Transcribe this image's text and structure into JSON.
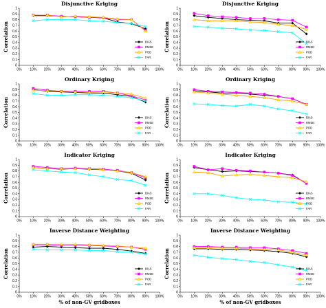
{
  "figure": {
    "xlabel": "% of non-GV gridboxes",
    "ylabel": "Correlation",
    "colors": {
      "BIAS": "#000000",
      "RMSE": "#ff00ff",
      "POD": "#ffff00",
      "FAR": "#00ffff",
      "orange_line": "#ff9900"
    }
  },
  "chart_data": [
    {
      "type": "line",
      "title": "Disjunctive Kriging",
      "x": [
        "0%",
        "10%",
        "20%",
        "30%",
        "40%",
        "50%",
        "60%",
        "70%",
        "80%",
        "90%",
        "100%"
      ],
      "ylim": [
        0,
        1
      ],
      "yticks": [
        "0",
        "0.1",
        "0.2",
        "0.3",
        "0.4",
        "0.5",
        "0.6",
        "0.7",
        "0.8",
        "0.9",
        "1"
      ],
      "series": [
        {
          "name": "BIAS",
          "values": [
            null,
            0.87,
            0.87,
            0.86,
            0.85,
            0.84,
            0.83,
            0.76,
            0.73,
            0.64,
            null
          ]
        },
        {
          "name": "RMSE",
          "values": [
            null,
            0.88,
            0.88,
            0.86,
            0.85,
            0.84,
            0.83,
            0.8,
            0.8,
            0.61,
            null
          ]
        },
        {
          "name": "POD",
          "values": [
            null,
            0.88,
            0.88,
            0.85,
            0.86,
            0.85,
            0.84,
            0.81,
            0.8,
            0.6,
            null
          ]
        },
        {
          "name": "FAR",
          "values": [
            null,
            0.78,
            0.8,
            0.8,
            0.8,
            0.78,
            0.77,
            0.75,
            0.73,
            0.68,
            null
          ]
        }
      ]
    },
    {
      "type": "line",
      "title": "Disjunctive Kriging",
      "x": [
        "0%",
        "10%",
        "20%",
        "30%",
        "40%",
        "50%",
        "60%",
        "70%",
        "80%",
        "90%",
        "100%"
      ],
      "ylim": [
        0,
        1
      ],
      "yticks": [
        "0",
        "0.1",
        "0.2",
        "0.3",
        "0.4",
        "0.5",
        "0.6",
        "0.7",
        "0.8",
        "0.9",
        "1"
      ],
      "series": [
        {
          "name": "BIAS",
          "values": [
            null,
            0.87,
            0.84,
            0.82,
            0.8,
            0.79,
            0.78,
            0.74,
            0.74,
            0.55,
            null
          ]
        },
        {
          "name": "RMSE",
          "values": [
            null,
            0.91,
            0.87,
            0.85,
            0.84,
            0.82,
            0.82,
            0.8,
            0.79,
            0.67,
            null
          ]
        },
        {
          "name": "POD",
          "values": [
            null,
            0.8,
            0.78,
            0.78,
            0.78,
            0.76,
            0.75,
            0.72,
            0.7,
            0.63,
            null
          ]
        },
        {
          "name": "FAR",
          "values": [
            null,
            0.68,
            0.67,
            0.65,
            0.64,
            0.62,
            0.61,
            0.59,
            0.57,
            0.38,
            null
          ]
        }
      ]
    },
    {
      "type": "line",
      "title": "Ordinary Kriging",
      "x": [
        "0%",
        "10%",
        "20%",
        "30%",
        "40%",
        "50%",
        "60%",
        "70%",
        "80%",
        "90%",
        "100%"
      ],
      "ylim": [
        0,
        1
      ],
      "yticks": [
        "0",
        "0.1",
        "0.2",
        "0.3",
        "0.4",
        "0.5",
        "0.6",
        "0.7",
        "0.8",
        "0.9",
        "1"
      ],
      "series": [
        {
          "name": "BIAS",
          "values": [
            null,
            0.9,
            0.87,
            0.86,
            0.85,
            0.84,
            0.84,
            0.81,
            0.78,
            0.68,
            null
          ]
        },
        {
          "name": "RMSE",
          "values": [
            null,
            0.92,
            0.89,
            0.87,
            0.87,
            0.87,
            0.87,
            0.84,
            0.79,
            0.72,
            null
          ]
        },
        {
          "name": "POD",
          "values": [
            null,
            0.89,
            0.88,
            0.87,
            0.86,
            0.85,
            0.86,
            0.84,
            0.82,
            0.75,
            null
          ]
        },
        {
          "name": "FAR",
          "values": [
            null,
            0.83,
            0.8,
            0.8,
            0.81,
            0.81,
            0.8,
            0.78,
            0.76,
            0.7,
            null
          ]
        }
      ]
    },
    {
      "type": "line",
      "title": "Ordinary Kriging",
      "x": [
        "0%",
        "10%",
        "20%",
        "30%",
        "40%",
        "50%",
        "60%",
        "70%",
        "80%",
        "90%",
        "100%"
      ],
      "ylim": [
        0,
        1
      ],
      "yticks": [
        "0",
        "0.1",
        "0.2",
        "0.3",
        "0.4",
        "0.5",
        "0.6",
        "0.7",
        "0.8",
        "0.9",
        "1"
      ],
      "series": [
        {
          "name": "BIAS",
          "values": [
            null,
            0.88,
            0.86,
            0.84,
            0.84,
            0.82,
            0.8,
            0.78,
            0.74,
            0.64,
            null
          ]
        },
        {
          "name": "RMSE",
          "values": [
            null,
            0.9,
            0.87,
            0.86,
            0.85,
            0.84,
            0.82,
            0.78,
            0.74,
            0.64,
            null
          ]
        },
        {
          "name": "POD",
          "values": [
            null,
            0.86,
            0.84,
            0.82,
            0.8,
            0.78,
            0.76,
            0.72,
            0.7,
            0.64,
            null
          ]
        },
        {
          "name": "FAR",
          "values": [
            null,
            0.65,
            0.64,
            0.62,
            0.61,
            0.64,
            0.61,
            0.56,
            0.53,
            0.47,
            null
          ]
        }
      ]
    },
    {
      "type": "line",
      "title": "Indicator Kriging",
      "x": [
        "0%",
        "10%",
        "20%",
        "30%",
        "40%",
        "50%",
        "60%",
        "70%",
        "80%",
        "90%",
        "100%"
      ],
      "ylim": [
        0,
        1
      ],
      "yticks": [
        "0",
        "0.1",
        "0.2",
        "0.3",
        "0.4",
        "0.5",
        "0.6",
        "0.7",
        "0.8",
        "0.9",
        "1"
      ],
      "series": [
        {
          "name": "BIAS",
          "values": [
            null,
            0.86,
            0.84,
            0.83,
            0.84,
            0.83,
            0.82,
            0.8,
            0.76,
            0.64,
            null
          ]
        },
        {
          "name": "RMSE",
          "values": [
            null,
            0.88,
            0.86,
            0.84,
            0.85,
            0.84,
            0.83,
            0.81,
            0.77,
            0.68,
            null
          ]
        },
        {
          "name": "POD",
          "values": [
            null,
            0.86,
            0.84,
            0.84,
            0.84,
            0.84,
            0.82,
            0.8,
            0.77,
            0.7,
            null
          ]
        },
        {
          "name": "FAR",
          "values": [
            null,
            0.82,
            0.8,
            0.78,
            0.77,
            0.73,
            0.7,
            0.65,
            0.63,
            0.55,
            null
          ]
        }
      ]
    },
    {
      "type": "line",
      "title": "Indicator Kriging",
      "x": [
        "0%",
        "10%",
        "20%",
        "30%",
        "40%",
        "50%",
        "60%",
        "70%",
        "80%",
        "90%",
        "100%"
      ],
      "ylim": [
        0,
        1
      ],
      "yticks": [
        "0",
        "0.1",
        "0.2",
        "0.3",
        "0.4",
        "0.5",
        "0.6",
        "0.7",
        "0.8",
        "0.9",
        "1"
      ],
      "series": [
        {
          "name": "BIAS",
          "values": [
            null,
            0.86,
            0.82,
            0.79,
            0.8,
            0.79,
            0.78,
            0.76,
            0.73,
            0.58,
            null
          ]
        },
        {
          "name": "RMSE",
          "values": [
            null,
            0.88,
            0.82,
            0.84,
            0.81,
            0.8,
            0.78,
            0.76,
            0.72,
            0.58,
            null
          ]
        },
        {
          "name": "POD",
          "values": [
            null,
            0.78,
            0.77,
            0.71,
            0.73,
            0.74,
            0.72,
            0.7,
            0.68,
            0.61,
            null
          ]
        },
        {
          "name": "FAR",
          "values": [
            null,
            0.4,
            0.4,
            0.37,
            0.33,
            0.3,
            0.29,
            0.26,
            0.25,
            0.22,
            null
          ]
        }
      ]
    },
    {
      "type": "line",
      "title": "Inverse Distance Weighting",
      "x": [
        "0%",
        "10%",
        "20%",
        "30%",
        "40%",
        "50%",
        "60%",
        "70%",
        "80%",
        "90%",
        "100%"
      ],
      "ylim": [
        0,
        1
      ],
      "yticks": [
        "0",
        "0.1",
        "0.2",
        "0.3",
        "0.4",
        "0.5",
        "0.6",
        "0.7",
        "0.8",
        "0.9",
        "1"
      ],
      "series": [
        {
          "name": "BIAS",
          "values": [
            null,
            0.79,
            0.8,
            0.79,
            0.78,
            0.77,
            0.77,
            0.75,
            0.72,
            0.68,
            null
          ]
        },
        {
          "name": "RMSE",
          "values": [
            null,
            0.83,
            0.83,
            0.82,
            0.82,
            0.82,
            0.81,
            0.8,
            0.79,
            0.75,
            null
          ]
        },
        {
          "name": "POD",
          "values": [
            null,
            0.84,
            0.84,
            0.84,
            0.84,
            0.83,
            0.82,
            0.81,
            0.79,
            0.77,
            null
          ]
        },
        {
          "name": "FAR",
          "values": [
            null,
            0.75,
            0.74,
            0.74,
            0.74,
            0.73,
            0.73,
            0.71,
            0.7,
            0.67,
            null
          ]
        }
      ]
    },
    {
      "type": "line",
      "title": "Inverse Distance Weighting",
      "x": [
        "0%",
        "10%",
        "20%",
        "30%",
        "40%",
        "50%",
        "60%",
        "70%",
        "80%",
        "90%",
        "100%"
      ],
      "ylim": [
        0,
        1
      ],
      "yticks": [
        "0",
        "0.1",
        "0.2",
        "0.3",
        "0.4",
        "0.5",
        "0.6",
        "0.7",
        "0.8",
        "0.9",
        "1"
      ],
      "series": [
        {
          "name": "BIAS",
          "values": [
            null,
            0.76,
            0.76,
            0.75,
            0.75,
            0.74,
            0.73,
            0.71,
            0.68,
            0.62,
            null
          ]
        },
        {
          "name": "RMSE",
          "values": [
            null,
            0.8,
            0.8,
            0.79,
            0.79,
            0.78,
            0.78,
            0.76,
            0.73,
            0.68,
            null
          ]
        },
        {
          "name": "POD",
          "values": [
            null,
            0.78,
            0.78,
            0.77,
            0.77,
            0.76,
            0.75,
            0.74,
            0.7,
            0.65,
            null
          ]
        },
        {
          "name": "FAR",
          "values": [
            null,
            0.65,
            0.61,
            0.59,
            0.57,
            0.54,
            0.52,
            0.48,
            0.44,
            0.38,
            null
          ]
        }
      ]
    }
  ]
}
